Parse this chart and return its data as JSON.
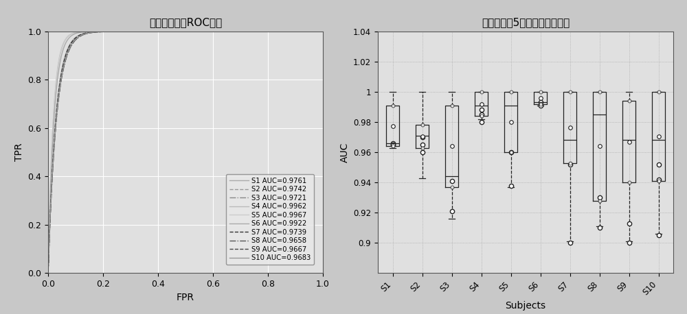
{
  "roc_title": "不同受试者的ROC曲线",
  "roc_xlabel": "FPR",
  "roc_ylabel": "TPR",
  "box_title": "不同受试者5折交叉验证筱线图",
  "box_xlabel": "Subjects",
  "box_ylabel": "AUC",
  "subjects": [
    "S1",
    "S2",
    "S3",
    "S4",
    "S5",
    "S6",
    "S7",
    "S8",
    "S9",
    "S10"
  ],
  "auc_values": [
    0.9761,
    0.9742,
    0.9721,
    0.9962,
    0.9967,
    0.9922,
    0.9739,
    0.9658,
    0.9667,
    0.9683
  ],
  "line_styles": [
    "-",
    "--",
    "-.",
    "-",
    "-",
    "-",
    "--",
    "-.",
    "--",
    "-"
  ],
  "line_colors": [
    "#aaaaaa",
    "#999999",
    "#888888",
    "#bbbbbb",
    "#cccccc",
    "#aaaaaa",
    "#333333",
    "#555555",
    "#444444",
    "#999999"
  ],
  "box_data": {
    "S1": {
      "whislo": 0.963,
      "q1": 0.964,
      "med": 0.966,
      "q3": 0.991,
      "whishi": 1.0,
      "outliers": [
        0.965,
        0.966,
        0.965
      ]
    },
    "S2": {
      "whislo": 0.943,
      "q1": 0.963,
      "med": 0.971,
      "q3": 0.978,
      "whishi": 1.0,
      "outliers": [
        0.96,
        0.965,
        0.97
      ]
    },
    "S3": {
      "whislo": 0.916,
      "q1": 0.937,
      "med": 0.944,
      "q3": 0.991,
      "whishi": 1.0,
      "outliers": [
        0.921,
        0.941
      ]
    },
    "S4": {
      "whislo": 0.982,
      "q1": 0.984,
      "med": 0.991,
      "q3": 1.0,
      "whishi": 1.0,
      "outliers": [
        0.98,
        0.985,
        0.988
      ]
    },
    "S5": {
      "whislo": 0.937,
      "q1": 0.96,
      "med": 0.991,
      "q3": 1.0,
      "whishi": 1.0,
      "outliers": [
        0.938,
        0.96
      ]
    },
    "S6": {
      "whislo": 0.991,
      "q1": 0.992,
      "med": 0.993,
      "q3": 1.0,
      "whishi": 1.0,
      "outliers": [
        0.991,
        0.993
      ]
    },
    "S7": {
      "whislo": 0.901,
      "q1": 0.953,
      "med": 0.968,
      "q3": 1.0,
      "whishi": 1.0,
      "outliers": [
        0.9,
        0.952
      ]
    },
    "S8": {
      "whislo": 0.911,
      "q1": 0.928,
      "med": 0.985,
      "q3": 1.0,
      "whishi": 1.0,
      "outliers": [
        0.91,
        0.93
      ]
    },
    "S9": {
      "whislo": 0.901,
      "q1": 0.94,
      "med": 0.968,
      "q3": 0.994,
      "whishi": 1.0,
      "outliers": [
        0.9,
        0.913
      ]
    },
    "S10": {
      "whislo": 0.906,
      "q1": 0.941,
      "med": 0.968,
      "q3": 1.0,
      "whishi": 1.0,
      "outliers": [
        0.905,
        0.942,
        0.952
      ]
    }
  },
  "bg_color": "#c8c8c8",
  "plot_bg_color": "#e0e0e0",
  "grid_color": "#ffffff",
  "box_color": "#222222"
}
